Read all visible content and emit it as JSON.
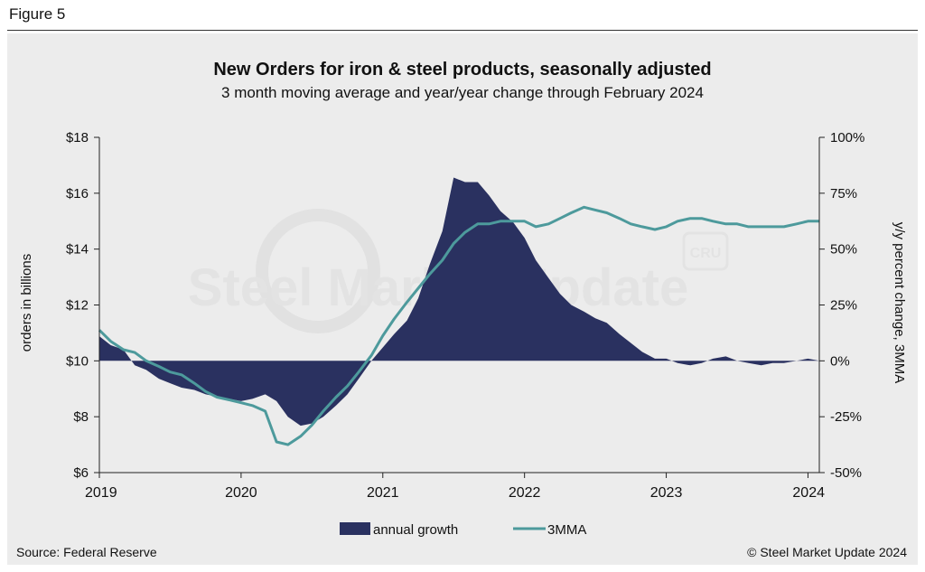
{
  "figure_label": "Figure 5",
  "source": "Source: Federal Reserve",
  "copyright": "© Steel Market Update 2024",
  "watermark": {
    "brand": "Steel Market Update",
    "badge": "CRU"
  },
  "colors": {
    "area": "#2a3160",
    "line": "#4d9a9c",
    "panel": "#ececec",
    "axis": "#222222"
  },
  "chart_data": {
    "type": "area",
    "title": "New Orders for iron & steel products, seasonally adjusted",
    "subtitle": "3 month moving average and year/year change through February 2024",
    "ylabel_left": "orders in billions",
    "ylabel_right": "y/y percent change, 3MMA",
    "x_ticks": [
      "2019",
      "2020",
      "2021",
      "2022",
      "2023",
      "2024"
    ],
    "y_left_ticks": [
      "$6",
      "$8",
      "$10",
      "$12",
      "$14",
      "$16",
      "$18"
    ],
    "y_left_range": [
      6,
      18
    ],
    "y_right_ticks": [
      "-50%",
      "-25%",
      "0%",
      "25%",
      "50%",
      "75%",
      "100%"
    ],
    "y_right_range": [
      -50,
      100
    ],
    "x_range": [
      2019.0,
      2024.08
    ],
    "legend": [
      "annual growth",
      "3MMA"
    ],
    "legend_position": "bottom",
    "series": [
      {
        "name": "annual growth",
        "axis": "right",
        "type": "area",
        "x": [
          2019.0,
          2019.08,
          2019.17,
          2019.25,
          2019.33,
          2019.42,
          2019.5,
          2019.58,
          2019.67,
          2019.75,
          2019.83,
          2019.92,
          2020.0,
          2020.08,
          2020.17,
          2020.25,
          2020.33,
          2020.42,
          2020.5,
          2020.58,
          2020.67,
          2020.75,
          2020.83,
          2020.92,
          2021.0,
          2021.08,
          2021.17,
          2021.25,
          2021.33,
          2021.42,
          2021.5,
          2021.58,
          2021.67,
          2021.75,
          2021.83,
          2021.92,
          2022.0,
          2022.08,
          2022.17,
          2022.25,
          2022.33,
          2022.42,
          2022.5,
          2022.58,
          2022.67,
          2022.75,
          2022.83,
          2022.92,
          2023.0,
          2023.08,
          2023.17,
          2023.25,
          2023.33,
          2023.42,
          2023.5,
          2023.58,
          2023.67,
          2023.75,
          2023.83,
          2023.92,
          2024.0,
          2024.08
        ],
        "values": [
          11,
          7,
          5,
          -2,
          -4,
          -8,
          -10,
          -12,
          -13,
          -15,
          -16,
          -17,
          -18,
          -17,
          -15,
          -18,
          -25,
          -29,
          -28,
          -25,
          -20,
          -15,
          -8,
          0,
          6,
          12,
          18,
          28,
          43,
          58,
          82,
          80,
          80,
          74,
          67,
          62,
          55,
          45,
          37,
          30,
          25,
          22,
          19,
          17,
          12,
          8,
          4,
          1,
          1,
          -1,
          -2,
          -1,
          1,
          2,
          0,
          -1,
          -2,
          -1,
          -1,
          0,
          1,
          0
        ]
      },
      {
        "name": "3MMA",
        "axis": "left",
        "type": "line",
        "x": [
          2019.0,
          2019.08,
          2019.17,
          2019.25,
          2019.33,
          2019.42,
          2019.5,
          2019.58,
          2019.67,
          2019.75,
          2019.83,
          2019.92,
          2020.0,
          2020.08,
          2020.17,
          2020.25,
          2020.33,
          2020.42,
          2020.5,
          2020.58,
          2020.67,
          2020.75,
          2020.83,
          2020.92,
          2021.0,
          2021.08,
          2021.17,
          2021.25,
          2021.33,
          2021.42,
          2021.5,
          2021.58,
          2021.67,
          2021.75,
          2021.83,
          2021.92,
          2022.0,
          2022.08,
          2022.17,
          2022.25,
          2022.33,
          2022.42,
          2022.5,
          2022.58,
          2022.67,
          2022.75,
          2022.83,
          2022.92,
          2023.0,
          2023.08,
          2023.17,
          2023.25,
          2023.33,
          2023.42,
          2023.5,
          2023.58,
          2023.67,
          2023.75,
          2023.83,
          2023.92,
          2024.0,
          2024.08
        ],
        "values": [
          11.1,
          10.7,
          10.4,
          10.3,
          10.0,
          9.8,
          9.6,
          9.5,
          9.2,
          8.9,
          8.7,
          8.6,
          8.5,
          8.4,
          8.2,
          7.1,
          7.0,
          7.3,
          7.7,
          8.2,
          8.7,
          9.1,
          9.6,
          10.2,
          10.9,
          11.5,
          12.1,
          12.6,
          13.1,
          13.6,
          14.2,
          14.6,
          14.9,
          14.9,
          15.0,
          15.0,
          15.0,
          14.8,
          14.9,
          15.1,
          15.3,
          15.5,
          15.4,
          15.3,
          15.1,
          14.9,
          14.8,
          14.7,
          14.8,
          15.0,
          15.1,
          15.1,
          15.0,
          14.9,
          14.9,
          14.8,
          14.8,
          14.8,
          14.8,
          14.9,
          15.0,
          15.0
        ]
      }
    ]
  }
}
